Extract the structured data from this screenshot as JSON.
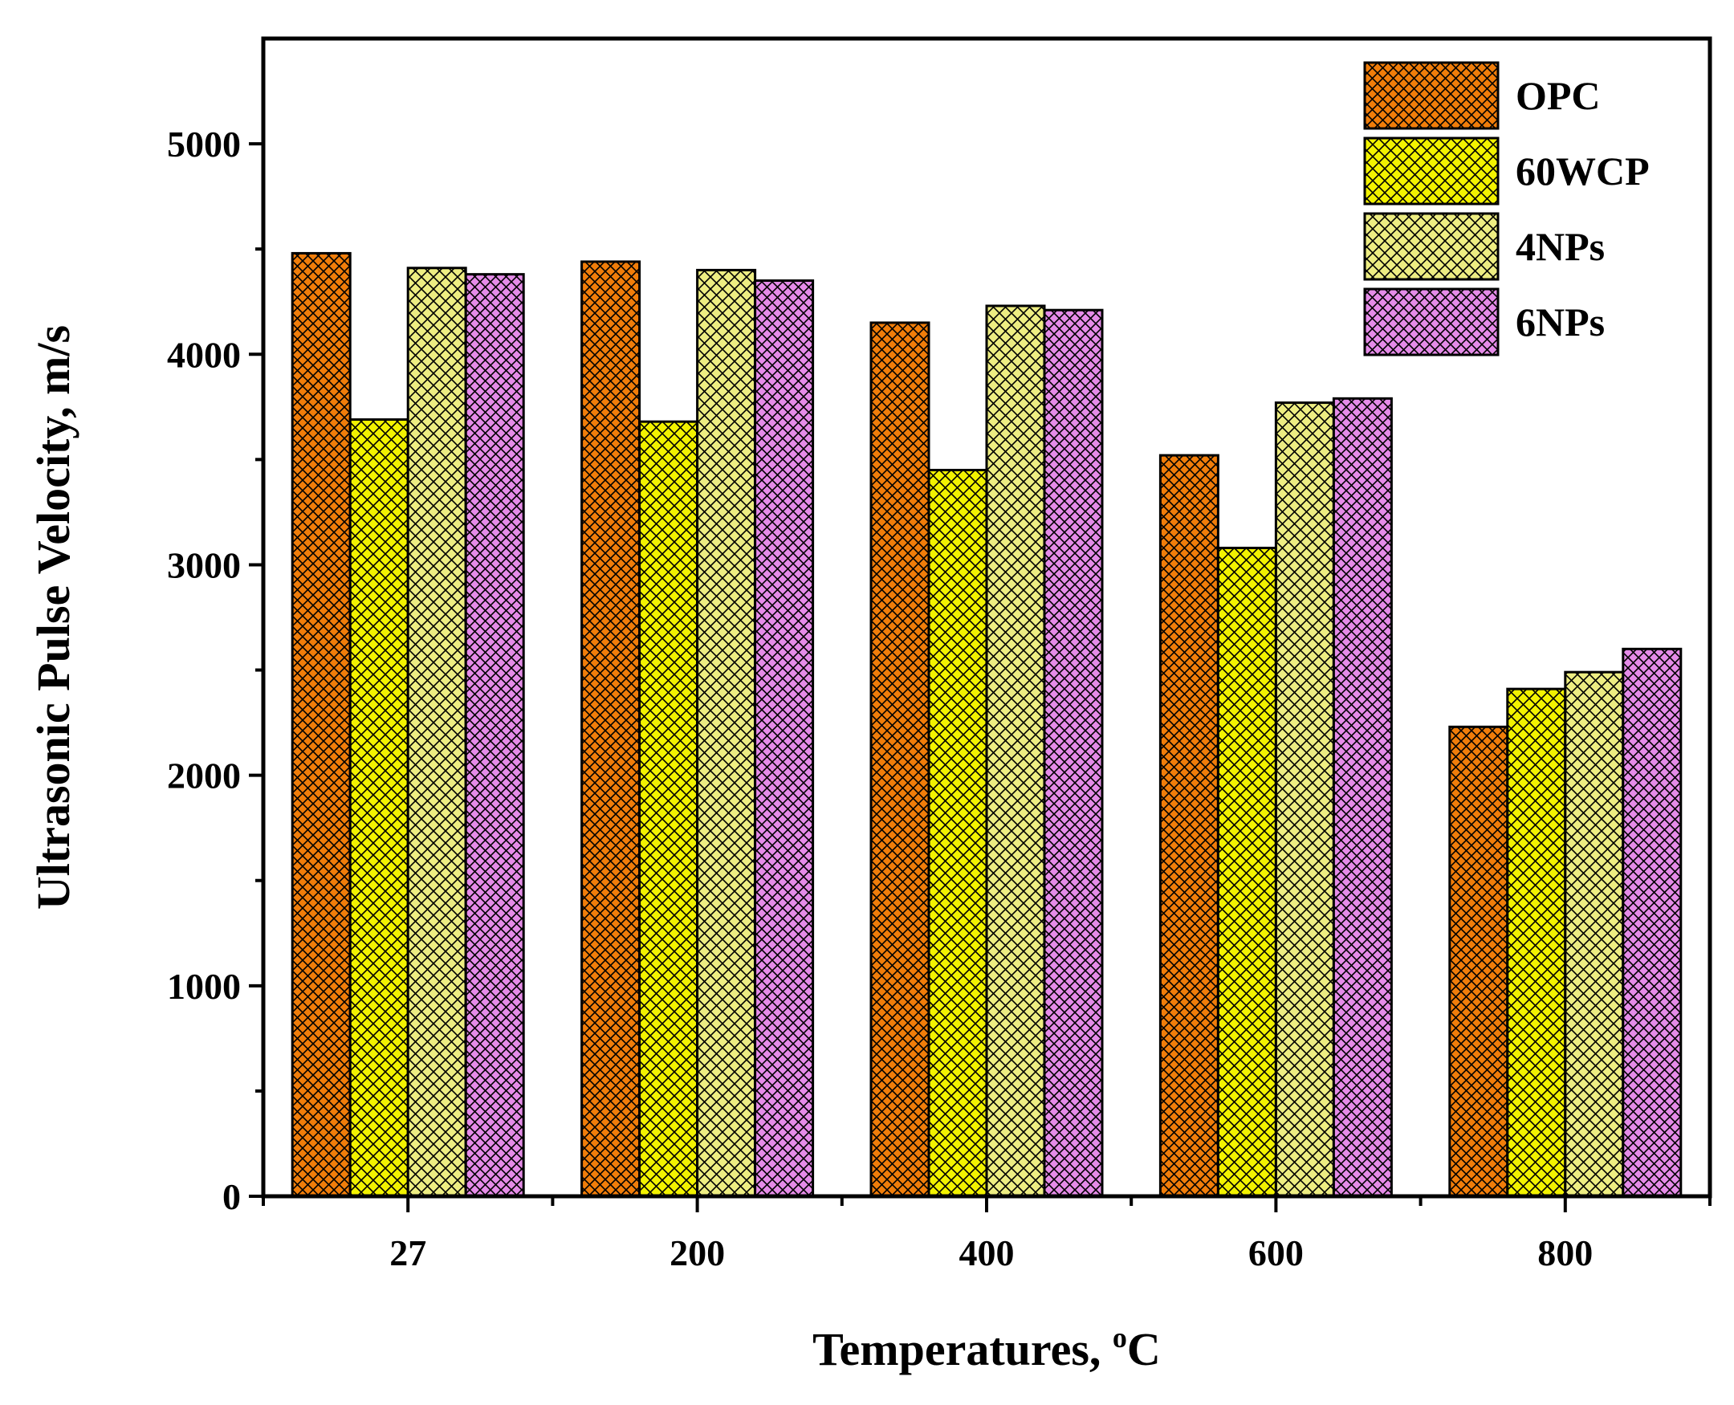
{
  "chart_data": {
    "type": "bar",
    "xlabel": "Temperatures, ",
    "xlabel_degree": "o",
    "xlabel_unit": "C",
    "ylabel": "Ultrasonic Pulse Velocity, m/s",
    "categories": [
      "27",
      "200",
      "400",
      "600",
      "800"
    ],
    "ylim": [
      0,
      5500
    ],
    "yticks": [
      0,
      1000,
      2000,
      3000,
      4000,
      5000
    ],
    "ytick_labels": [
      "0",
      "1000",
      "2000",
      "3000",
      "4000",
      "5000"
    ],
    "legend_position": "top-right",
    "series": [
      {
        "name": "OPC",
        "color": "#F07D0A",
        "pattern": "crosshatch-dense",
        "values": [
          4480,
          4440,
          4150,
          3520,
          2230
        ]
      },
      {
        "name": "60WCP",
        "color": "#F2F200",
        "pattern": "crosshatch",
        "values": [
          3690,
          3680,
          3450,
          3080,
          2410
        ]
      },
      {
        "name": "4NPs",
        "color": "#EDED82",
        "pattern": "crosshatch",
        "values": [
          4410,
          4400,
          4230,
          3770,
          2490
        ]
      },
      {
        "name": "6NPs",
        "color": "#E58BE8",
        "pattern": "crosshatch-dense",
        "values": [
          4380,
          4350,
          4210,
          3790,
          2600
        ]
      }
    ]
  }
}
